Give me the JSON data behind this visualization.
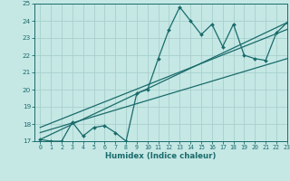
{
  "title": "",
  "xlabel": "Humidex (Indice chaleur)",
  "ylabel": "",
  "bg_color": "#c5e8e5",
  "grid_color": "#a8d0cc",
  "line_color": "#1a6b6b",
  "ylim": [
    17,
    25
  ],
  "xlim": [
    -0.5,
    23
  ],
  "yticks": [
    17,
    18,
    19,
    20,
    21,
    22,
    23,
    24,
    25
  ],
  "xticks": [
    0,
    1,
    2,
    3,
    4,
    5,
    6,
    7,
    8,
    9,
    10,
    11,
    12,
    13,
    14,
    15,
    16,
    17,
    18,
    19,
    20,
    21,
    22,
    23
  ],
  "data_x": [
    0,
    1,
    2,
    3,
    4,
    5,
    6,
    7,
    8,
    9,
    10,
    11,
    12,
    13,
    14,
    15,
    16,
    17,
    18,
    19,
    20,
    21,
    22,
    23
  ],
  "data_y": [
    17.1,
    17.0,
    17.0,
    18.1,
    17.3,
    17.8,
    17.9,
    17.5,
    17.0,
    19.8,
    20.0,
    21.8,
    23.5,
    24.8,
    24.0,
    23.2,
    23.8,
    22.5,
    23.8,
    22.0,
    21.8,
    21.7,
    23.3,
    23.9
  ],
  "trend1_x": [
    0,
    23
  ],
  "trend1_y": [
    17.1,
    23.9
  ],
  "trend2_x": [
    0,
    23
  ],
  "trend2_y": [
    17.5,
    21.8
  ],
  "trend3_x": [
    0,
    23
  ],
  "trend3_y": [
    17.8,
    23.5
  ]
}
